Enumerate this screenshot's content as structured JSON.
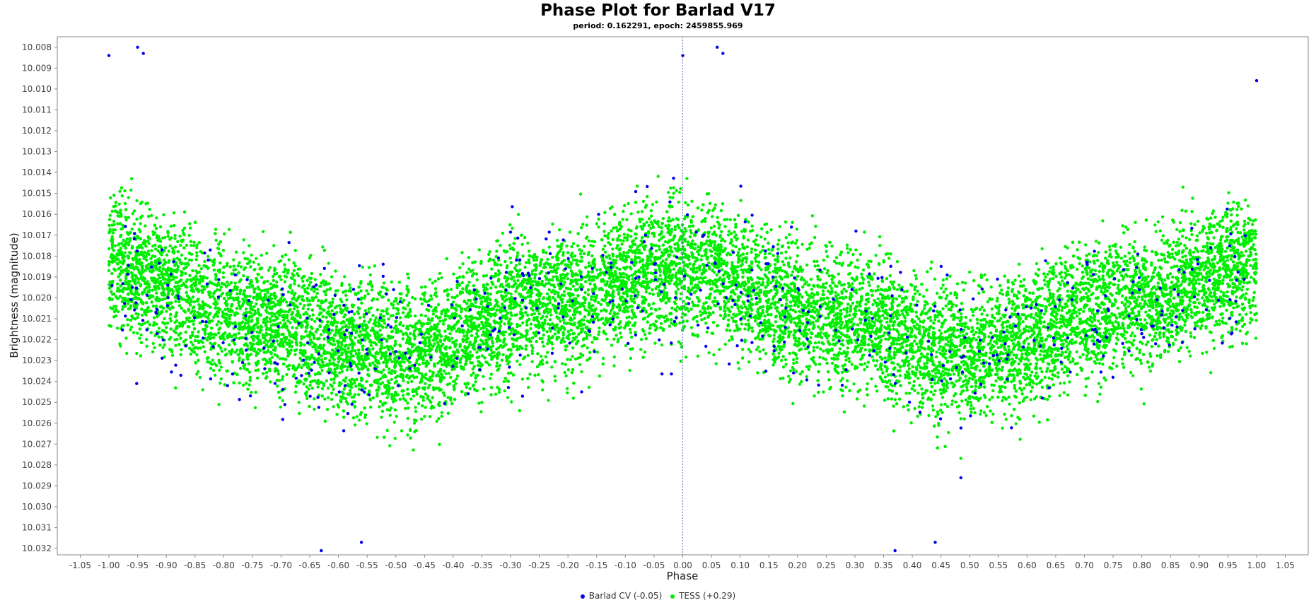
{
  "chart_data": {
    "type": "scatter",
    "title": "Phase Plot for Barlad V17",
    "subtitle": "period: 0.162291, epoch: 2459855.969",
    "xlabel": "Phase",
    "ylabel": "Brightness (magnitude)",
    "xlim": [
      -1.09,
      1.09
    ],
    "ylim": [
      10.0075,
      10.0323
    ],
    "y_inverted": true,
    "x_ticks": [
      "-1.05",
      "-1.00",
      "-0.95",
      "-0.90",
      "-0.85",
      "-0.80",
      "-0.75",
      "-0.70",
      "-0.65",
      "-0.60",
      "-0.55",
      "-0.50",
      "-0.45",
      "-0.40",
      "-0.35",
      "-0.30",
      "-0.25",
      "-0.20",
      "-0.15",
      "-0.10",
      "-0.05",
      "0.00",
      "0.05",
      "0.10",
      "0.15",
      "0.20",
      "0.25",
      "0.30",
      "0.35",
      "0.40",
      "0.45",
      "0.50",
      "0.55",
      "0.60",
      "0.65",
      "0.70",
      "0.75",
      "0.80",
      "0.85",
      "0.90",
      "0.95",
      "1.00",
      "1.05"
    ],
    "y_ticks": [
      "10.008",
      "10.009",
      "10.010",
      "10.011",
      "10.012",
      "10.013",
      "10.014",
      "10.015",
      "10.016",
      "10.017",
      "10.018",
      "10.019",
      "10.020",
      "10.021",
      "10.022",
      "10.023",
      "10.024",
      "10.025",
      "10.026",
      "10.027",
      "10.028",
      "10.029",
      "10.030",
      "10.031",
      "10.032"
    ],
    "grid": false,
    "legend_position": "bottom",
    "series": [
      {
        "name": "TESS (+0.29)",
        "color": "#00ee00",
        "points_description": "dense cloud of ~20000 points; mean magnitude varies sinusoidally with phase (two cycles across -1..1), brightest (~10.018) near phases -1.00, 0.00, 1.00, faintest (~10.023) near phases -0.50 and 0.50; vertical scatter about +/-0.003",
        "profile": {
          "phase": [
            -1.0,
            -0.75,
            -0.5,
            -0.25,
            0.0,
            0.25,
            0.5,
            0.75,
            1.0
          ],
          "mean_mag": [
            10.0185,
            10.021,
            10.0228,
            10.0205,
            10.0185,
            10.021,
            10.0228,
            10.0205,
            10.0185
          ],
          "spread": 0.0032
        }
      },
      {
        "name": "Barlad CV (-0.05)",
        "color": "#0000ee",
        "points_description": "sparse points (~500) following the same trend with wider scatter",
        "profile": {
          "phase": [
            -1.0,
            -0.75,
            -0.5,
            -0.25,
            0.0,
            0.25,
            0.5,
            0.75,
            1.0
          ],
          "mean_mag": [
            10.019,
            10.021,
            10.0225,
            10.0205,
            10.019,
            10.021,
            10.0225,
            10.0205,
            10.019
          ],
          "spread": 0.004
        },
        "highlight_points": [
          {
            "x": -1.0,
            "y": 10.0084
          },
          {
            "x": -0.95,
            "y": 10.008
          },
          {
            "x": -0.94,
            "y": 10.0083
          },
          {
            "x": 0.0,
            "y": 10.0084
          },
          {
            "x": 0.06,
            "y": 10.008
          },
          {
            "x": 0.07,
            "y": 10.0083
          },
          {
            "x": 1.0,
            "y": 10.0096
          },
          {
            "x": -0.63,
            "y": 10.0321
          },
          {
            "x": -0.56,
            "y": 10.0317
          },
          {
            "x": 0.37,
            "y": 10.0321
          },
          {
            "x": 0.44,
            "y": 10.0317
          }
        ]
      }
    ]
  }
}
